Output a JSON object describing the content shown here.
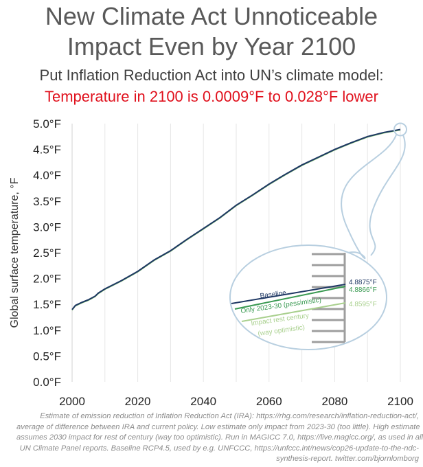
{
  "header": {
    "title_line1": "New Climate Act Unnoticeable",
    "title_line2": "Impact Even by Year 2100",
    "subtitle": "Put Inflation Reduction Act into UN’s climate model:",
    "highlight": "Temperature in 2100 is 0.0009°F to 0.028°F lower"
  },
  "colors": {
    "title": "#595959",
    "highlight": "#e0101c",
    "baseline": "#1f3864",
    "pessimistic": "#3a9a52",
    "optimistic": "#a9d08e",
    "inset_border": "#b8cfe0",
    "inset_bars": "#9e9e9e"
  },
  "chart_data": {
    "type": "line",
    "title": "",
    "xlabel": "",
    "ylabel": "Global surface temperature, °F",
    "xlim": [
      2000,
      2100
    ],
    "ylim": [
      0,
      5
    ],
    "x_ticks": [
      "2000",
      "2020",
      "2040",
      "2060",
      "2080",
      "2100"
    ],
    "y_ticks": [
      "0.0°F",
      "0.5°F",
      "1.0°F",
      "1.5°F",
      "2.0°F",
      "2.5°F",
      "3.0°F",
      "3.5°F",
      "4.0°F",
      "4.5°F",
      "5.0°F"
    ],
    "grid": "vertical",
    "series": [
      {
        "name": "Baseline",
        "x": [
          2000,
          2001,
          2003,
          2005,
          2007,
          2008,
          2010,
          2015,
          2020,
          2025,
          2030,
          2035,
          2040,
          2045,
          2050,
          2055,
          2060,
          2065,
          2070,
          2075,
          2080,
          2085,
          2090,
          2095,
          2100
        ],
        "values": [
          1.4,
          1.48,
          1.54,
          1.59,
          1.66,
          1.72,
          1.8,
          1.96,
          2.14,
          2.36,
          2.54,
          2.76,
          2.97,
          3.18,
          3.42,
          3.62,
          3.83,
          4.02,
          4.2,
          4.35,
          4.5,
          4.63,
          4.75,
          4.83,
          4.8875
        ]
      },
      {
        "name": "Only 2023-30 (pessimistic)",
        "end_value": 4.8866
      },
      {
        "name": "Impact rest century (way optimistic)",
        "end_value": 4.8595
      }
    ],
    "inset": {
      "labels": [
        "Baseline",
        "Only 2023-30 (pessimistic)",
        "Impact rest century",
        "(way optimistic)"
      ],
      "value_labels": [
        "4.8875°F",
        "4.8866°F",
        "4.8595°F"
      ]
    }
  },
  "footnote": [
    "Estimate of emission reduction of Inflation Reduction Act (IRA): https://rhg.com/research/inflation-reduction-act/,",
    "average of difference between IRA and current policy. Low estimate only impact from 2023-30 (too little). High estimate",
    "assumes 2030 impact for rest of century (way too optimistic). Run in MAGICC 7.0, https://live.magicc.org/, as used in all",
    "UN Climate Panel reports. Baseline RCP4.5, used by e.g. UNFCCC, https://unfccc.int/news/cop26-update-to-the-ndc-",
    "synthesis-report. twitter.com/bjornlomborg"
  ]
}
